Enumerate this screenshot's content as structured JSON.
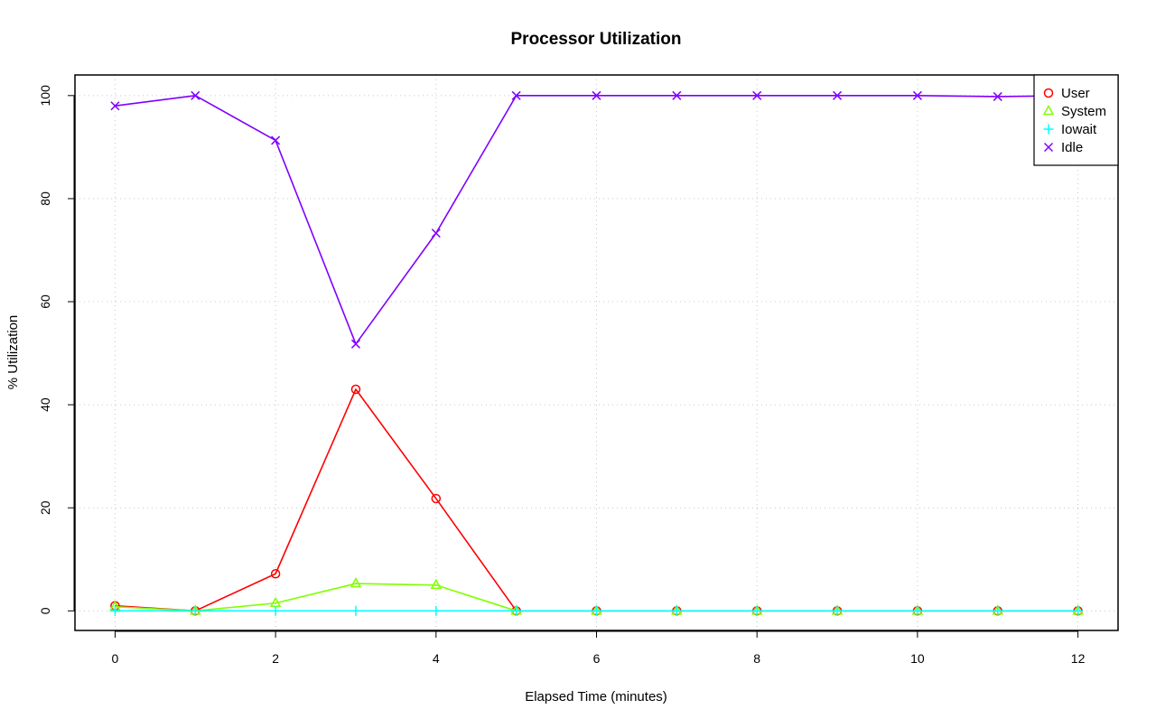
{
  "chart_data": {
    "type": "line",
    "title": "Processor Utilization",
    "xlabel": "Elapsed Time (minutes)",
    "ylabel": "% Utilization",
    "x": [
      0,
      1,
      2,
      3,
      4,
      5,
      6,
      7,
      8,
      9,
      10,
      11,
      12
    ],
    "xlim": [
      -0.5,
      12.5
    ],
    "ylim": [
      -3.8,
      104
    ],
    "xticks": [
      0,
      2,
      4,
      6,
      8,
      10,
      12
    ],
    "yticks": [
      0,
      20,
      40,
      60,
      80,
      100
    ],
    "xtick_labels": [
      "0",
      "2",
      "4",
      "6",
      "8",
      "10",
      "12"
    ],
    "ytick_labels": [
      "0",
      "20",
      "40",
      "60",
      "80",
      "100"
    ],
    "grid": true,
    "legend_position": "top-right",
    "series": [
      {
        "name": "User",
        "color": "#ff0000",
        "marker": "circle",
        "values": [
          1.0,
          0.0,
          7.2,
          43.0,
          21.8,
          0.0,
          0.0,
          0.0,
          0.0,
          0.0,
          0.0,
          0.0,
          0.0
        ]
      },
      {
        "name": "System",
        "color": "#80ff00",
        "marker": "triangle",
        "values": [
          0.8,
          0.0,
          1.5,
          5.3,
          5.0,
          0.0,
          0.0,
          0.0,
          0.0,
          0.0,
          0.0,
          0.0,
          0.0
        ]
      },
      {
        "name": "Iowait",
        "color": "#00ffff",
        "marker": "plus",
        "values": [
          0.0,
          0.0,
          0.0,
          0.0,
          0.0,
          0.0,
          0.0,
          0.0,
          0.0,
          0.0,
          0.0,
          0.0,
          0.0
        ]
      },
      {
        "name": "Idle",
        "color": "#8000ff",
        "marker": "cross",
        "values": [
          98.0,
          100.0,
          91.3,
          51.8,
          73.3,
          100.0,
          100.0,
          100.0,
          100.0,
          100.0,
          100.0,
          99.8,
          100.0
        ]
      }
    ]
  }
}
